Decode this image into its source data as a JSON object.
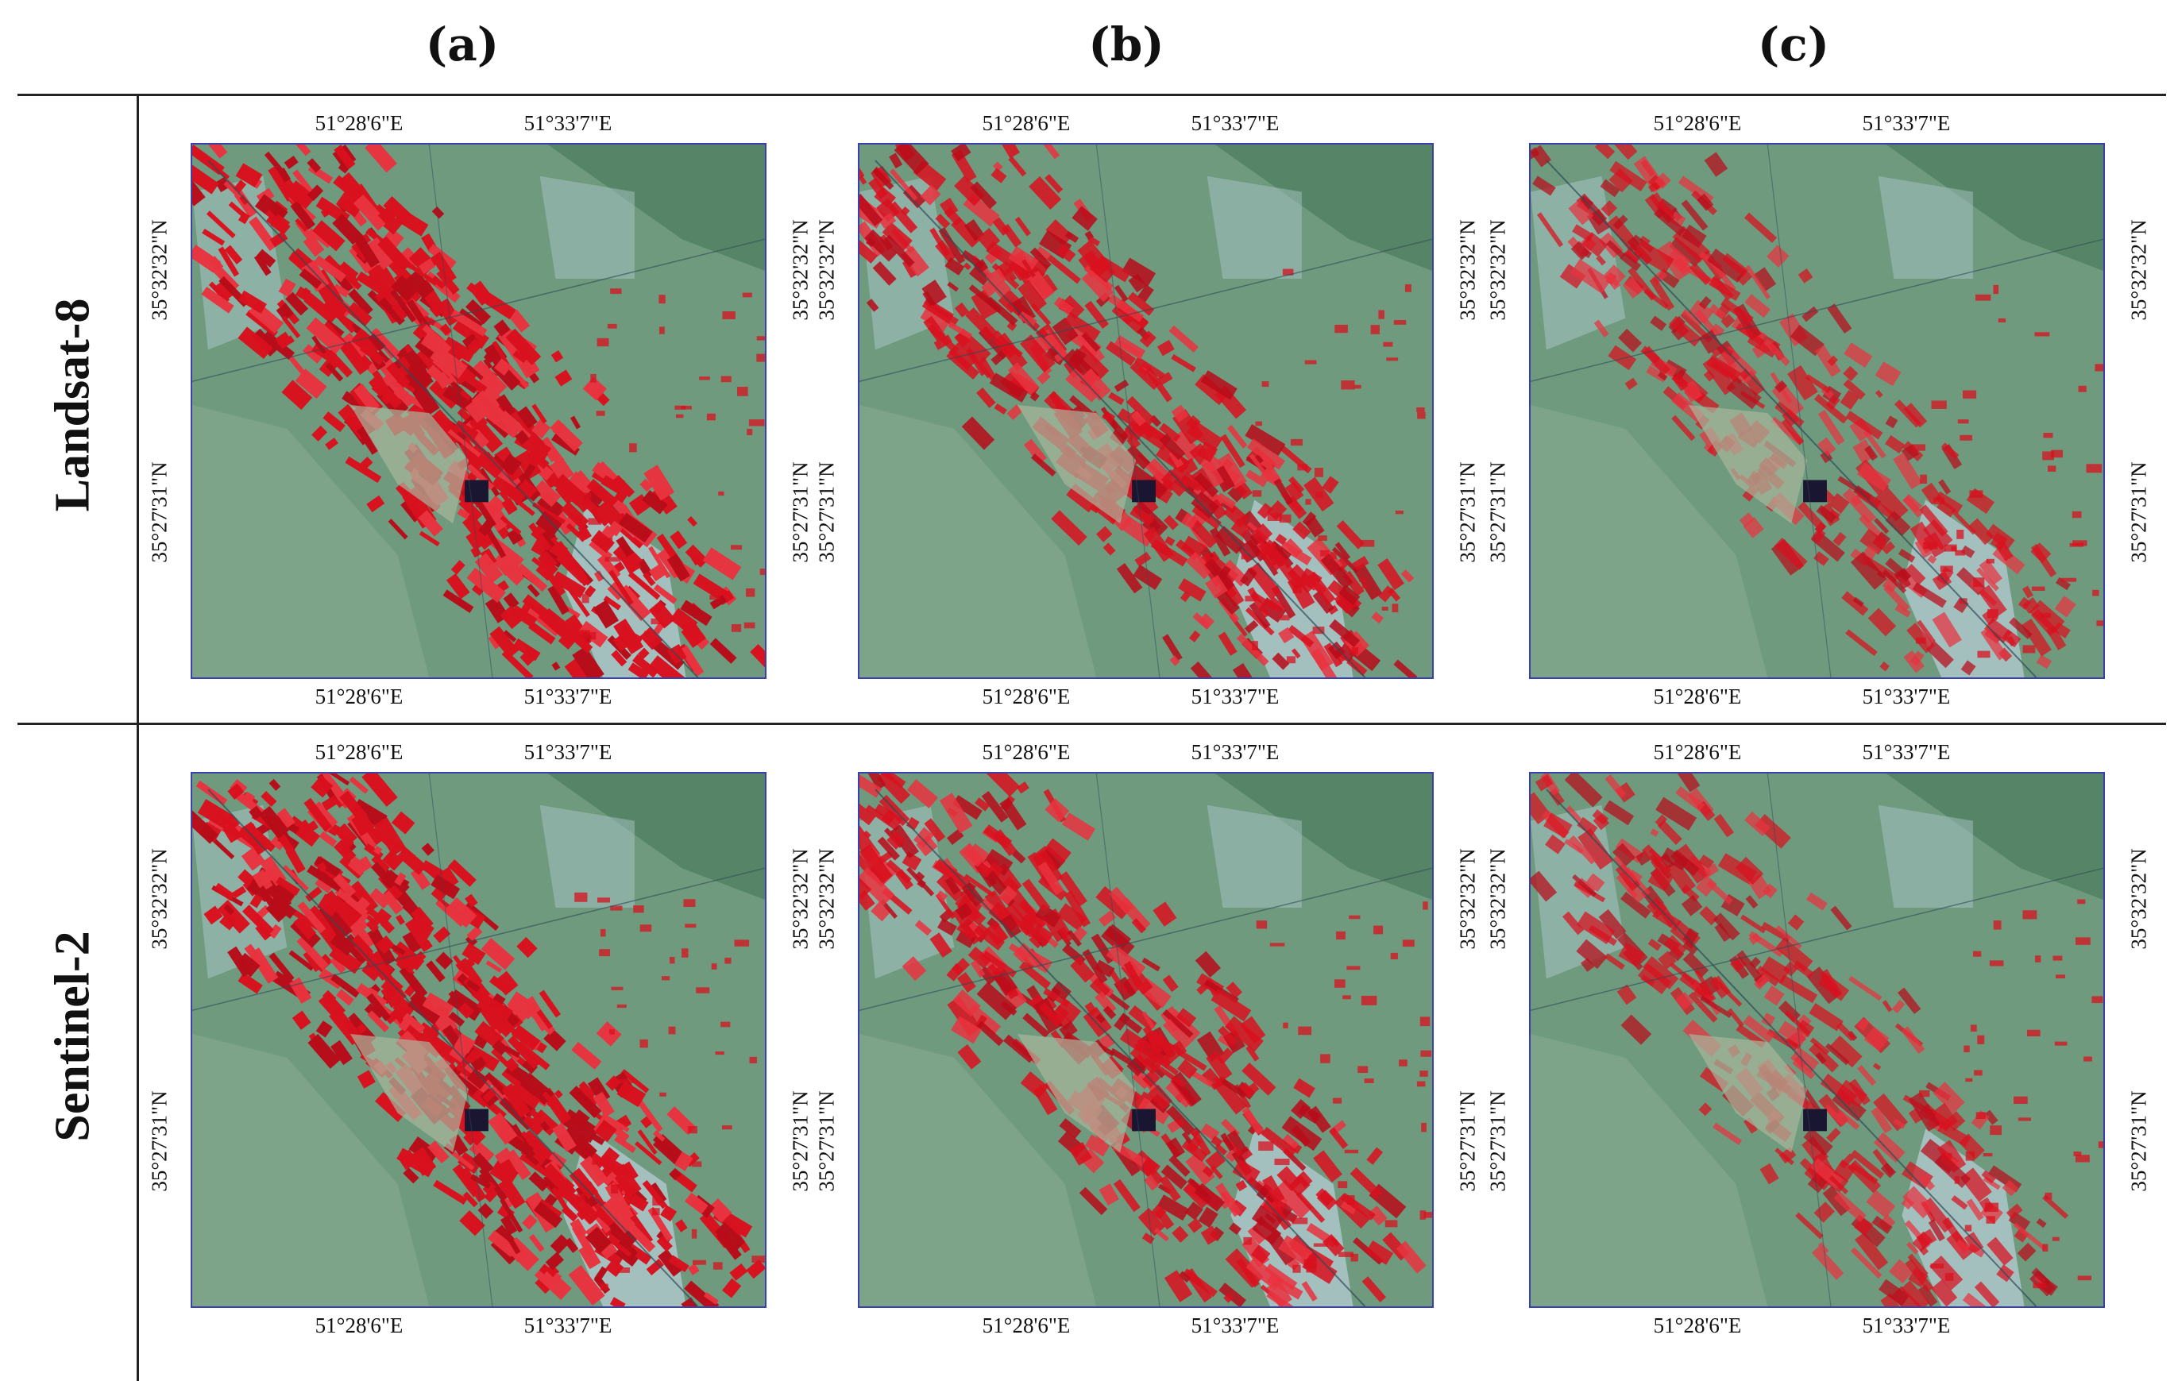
{
  "columns": [
    "(a)",
    "(b)",
    "(c)"
  ],
  "rows": [
    "Landsat-8",
    "Sentinel-2"
  ],
  "axis_labels": {
    "lon_west": "51°28'6\"E",
    "lon_east": "51°33'7\"E",
    "lat_north": "35°32'32\"N",
    "lat_south": "35°27'31\"N"
  },
  "colors": {
    "vegetation": "#d8101e",
    "background": "#6f9a7e",
    "urban": "#a8c4c6",
    "frame": "#3a3fae"
  },
  "panels": [
    {
      "row": "Landsat-8",
      "col": "(a)",
      "red_density": 0.95
    },
    {
      "row": "Landsat-8",
      "col": "(b)",
      "red_density": 0.7
    },
    {
      "row": "Landsat-8",
      "col": "(c)",
      "red_density": 0.4
    },
    {
      "row": "Sentinel-2",
      "col": "(a)",
      "red_density": 0.95
    },
    {
      "row": "Sentinel-2",
      "col": "(b)",
      "red_density": 0.7
    },
    {
      "row": "Sentinel-2",
      "col": "(c)",
      "red_density": 0.4
    }
  ]
}
